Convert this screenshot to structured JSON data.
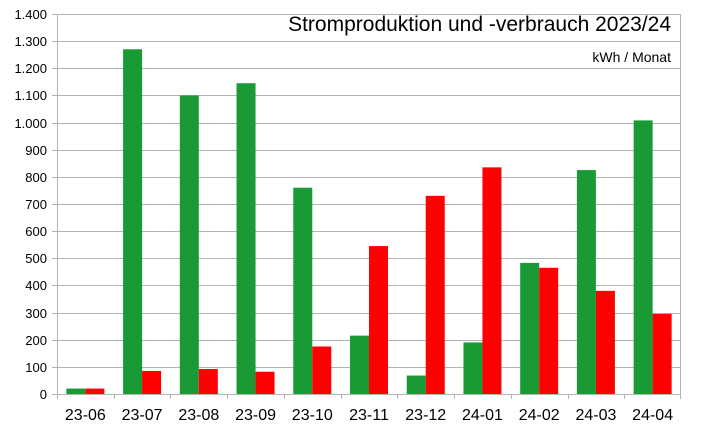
{
  "chart_data": {
    "type": "bar",
    "title": "Stromproduktion und -verbrauch 2023/24",
    "unit_label": "kWh / Monat",
    "categories": [
      "23-06",
      "23-07",
      "23-08",
      "23-09",
      "23-10",
      "23-11",
      "23-12",
      "24-01",
      "24-02",
      "24-03",
      "24-04"
    ],
    "series": [
      {
        "color": "#1a9a35",
        "values": [
          20,
          1270,
          1100,
          1145,
          760,
          215,
          68,
          190,
          483,
          825,
          1008
        ]
      },
      {
        "color": "#ff0000",
        "values": [
          20,
          85,
          92,
          82,
          175,
          545,
          730,
          835,
          465,
          380,
          295
        ]
      }
    ],
    "ylim": [
      0,
      1400
    ],
    "yticks": [
      0,
      100,
      200,
      300,
      400,
      500,
      600,
      700,
      800,
      900,
      1000,
      1100,
      1200,
      1300,
      1400
    ],
    "ytick_labels": [
      "0",
      "100",
      "200",
      "300",
      "400",
      "500",
      "600",
      "700",
      "800",
      "900",
      "1.000",
      "1.100",
      "1.200",
      "1.300",
      "1.400"
    ],
    "grid": true,
    "legend": "none"
  }
}
